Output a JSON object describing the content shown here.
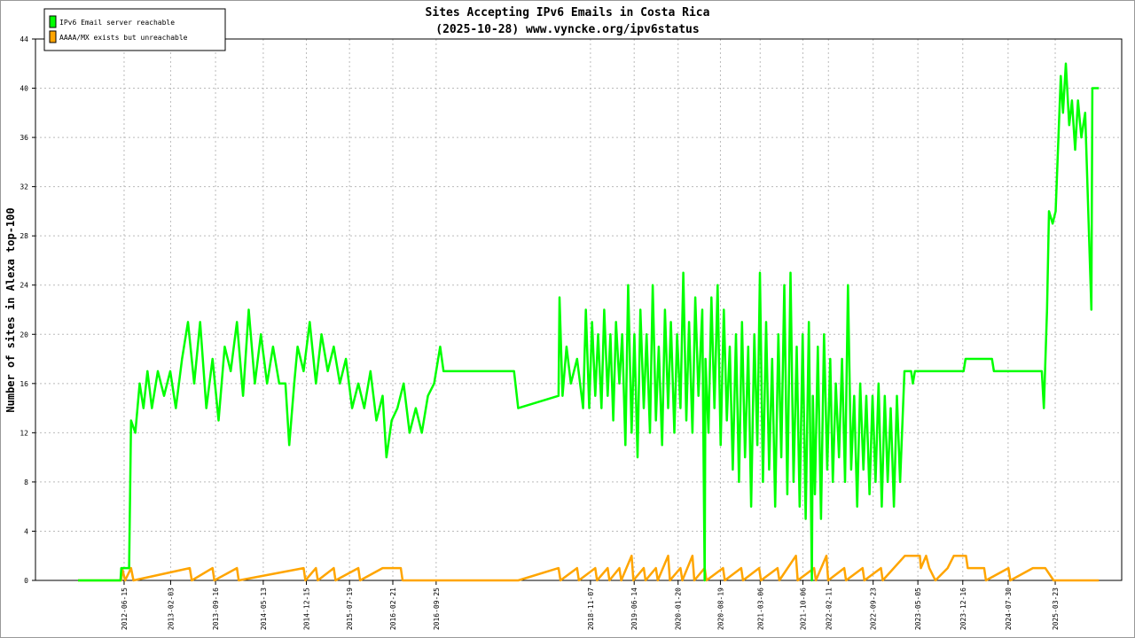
{
  "chart_data": {
    "type": "line",
    "title": "Sites Accepting IPv6 Emails in Costa Rica",
    "subtitle": "(2025-10-28) www.vyncke.org/ipv6status",
    "ylabel": "Number of sites in Alexa top-100",
    "xlim": [
      "2011-03-29",
      "2026-02-19"
    ],
    "xticks": [
      "2012-06-15",
      "2013-02-03",
      "2013-09-16",
      "2014-05-13",
      "2014-12-15",
      "2015-07-19",
      "2016-02-21",
      "2016-09-25",
      "2018-11-07",
      "2019-06-14",
      "2020-01-20",
      "2020-08-19",
      "2021-03-06",
      "2021-10-06",
      "2022-02-11",
      "2022-09-23",
      "2023-05-05",
      "2023-12-16",
      "2024-07-30",
      "2025-03-23"
    ],
    "ylim": [
      0,
      44
    ],
    "yticks": [
      0,
      4,
      8,
      12,
      16,
      20,
      24,
      28,
      32,
      36,
      40,
      44
    ],
    "grid": true,
    "legend": "upper left",
    "series": [
      {
        "name": "IPv6 Email server reachable",
        "color": "#00ff00",
        "x": [
          "2011-10-28",
          "2012-05-28",
          "2012-06-01",
          "2012-07-10",
          "2012-07-20",
          "2012-08-10",
          "2012-09-01",
          "2012-09-20",
          "2012-10-10",
          "2012-11-01",
          "2012-12-01",
          "2013-01-01",
          "2013-02-01",
          "2013-03-01",
          "2013-04-01",
          "2013-05-01",
          "2013-06-01",
          "2013-07-01",
          "2013-08-01",
          "2013-09-01",
          "2013-10-01",
          "2013-11-01",
          "2013-12-01",
          "2014-01-01",
          "2014-02-01",
          "2014-03-01",
          "2014-04-01",
          "2014-05-01",
          "2014-06-01",
          "2014-07-01",
          "2014-08-01",
          "2014-09-01",
          "2014-09-20",
          "2014-10-15",
          "2014-11-01",
          "2014-12-01",
          "2015-01-01",
          "2015-02-01",
          "2015-03-01",
          "2015-04-01",
          "2015-05-01",
          "2015-06-01",
          "2015-07-01",
          "2015-08-01",
          "2015-09-01",
          "2015-10-01",
          "2015-11-01",
          "2015-12-01",
          "2016-01-01",
          "2016-01-20",
          "2016-02-15",
          "2016-03-15",
          "2016-04-15",
          "2016-05-15",
          "2016-06-15",
          "2016-07-15",
          "2016-08-15",
          "2016-09-15",
          "2016-10-15",
          "2016-11-01",
          "2017-10-20",
          "2017-11-10",
          "2018-05-31",
          "2018-06-05",
          "2018-06-20",
          "2018-07-10",
          "2018-08-01",
          "2018-09-01",
          "2018-10-01",
          "2018-10-15",
          "2018-11-01",
          "2018-11-15",
          "2018-12-01",
          "2018-12-15",
          "2019-01-01",
          "2019-01-15",
          "2019-02-01",
          "2019-02-15",
          "2019-03-01",
          "2019-03-15",
          "2019-04-01",
          "2019-04-15",
          "2019-05-01",
          "2019-05-15",
          "2019-06-01",
          "2019-06-15",
          "2019-07-01",
          "2019-07-15",
          "2019-08-01",
          "2019-08-15",
          "2019-09-01",
          "2019-09-15",
          "2019-10-01",
          "2019-10-15",
          "2019-11-01",
          "2019-11-15",
          "2019-12-01",
          "2019-12-15",
          "2020-01-01",
          "2020-01-15",
          "2020-02-01",
          "2020-02-15",
          "2020-03-01",
          "2020-03-15",
          "2020-04-01",
          "2020-04-15",
          "2020-05-01",
          "2020-05-20",
          "2020-06-01",
          "2020-06-05",
          "2020-06-20",
          "2020-07-05",
          "2020-07-20",
          "2020-08-05",
          "2020-08-20",
          "2020-09-05",
          "2020-09-20",
          "2020-10-05",
          "2020-10-20",
          "2020-11-05",
          "2020-11-20",
          "2020-12-05",
          "2020-12-20",
          "2021-01-05",
          "2021-01-20",
          "2021-02-05",
          "2021-02-20",
          "2021-03-05",
          "2021-03-20",
          "2021-04-05",
          "2021-04-20",
          "2021-05-05",
          "2021-05-20",
          "2021-06-05",
          "2021-06-20",
          "2021-07-05",
          "2021-07-20",
          "2021-08-05",
          "2021-08-20",
          "2021-09-05",
          "2021-09-20",
          "2021-10-05",
          "2021-10-20",
          "2021-11-05",
          "2021-11-20",
          "2021-11-25",
          "2021-12-05",
          "2021-12-20",
          "2022-01-05",
          "2022-01-20",
          "2022-02-05",
          "2022-02-20",
          "2022-03-05",
          "2022-03-20",
          "2022-04-05",
          "2022-04-20",
          "2022-05-05",
          "2022-05-20",
          "2022-06-05",
          "2022-06-20",
          "2022-07-05",
          "2022-07-20",
          "2022-08-05",
          "2022-08-20",
          "2022-09-05",
          "2022-09-20",
          "2022-10-05",
          "2022-10-20",
          "2022-11-05",
          "2022-11-20",
          "2022-12-05",
          "2022-12-20",
          "2023-01-05",
          "2023-01-20",
          "2023-02-05",
          "2023-02-27",
          "2023-04-01",
          "2023-04-10",
          "2023-04-20",
          "2023-12-20",
          "2023-12-30",
          "2024-05-10",
          "2024-05-20",
          "2025-01-15",
          "2025-01-25",
          "2025-02-10",
          "2025-02-20",
          "2025-03-10",
          "2025-03-25",
          "2025-04-20",
          "2025-05-01",
          "2025-05-15",
          "2025-06-01",
          "2025-06-15",
          "2025-07-01",
          "2025-07-15",
          "2025-08-01",
          "2025-08-20",
          "2025-09-20",
          "2025-09-25",
          "2025-10-28"
        ],
        "values": [
          0,
          0,
          1,
          1,
          13,
          12,
          16,
          14,
          17,
          14,
          17,
          15,
          17,
          14,
          18,
          21,
          16,
          21,
          14,
          18,
          13,
          19,
          17,
          21,
          15,
          22,
          16,
          20,
          16,
          19,
          16,
          16,
          11,
          16,
          19,
          17,
          21,
          16,
          20,
          17,
          19,
          16,
          18,
          14,
          16,
          14,
          17,
          13,
          15,
          10,
          13,
          14,
          16,
          12,
          14,
          12,
          15,
          16,
          19,
          17,
          17,
          14,
          15,
          23,
          15,
          19,
          16,
          18,
          14,
          22,
          14,
          21,
          15,
          20,
          14,
          22,
          15,
          20,
          13,
          21,
          16,
          20,
          11,
          24,
          12,
          20,
          10,
          22,
          14,
          20,
          12,
          24,
          13,
          19,
          11,
          22,
          14,
          21,
          12,
          20,
          14,
          25,
          13,
          21,
          12,
          23,
          15,
          22,
          0,
          18,
          12,
          23,
          14,
          24,
          11,
          22,
          13,
          19,
          9,
          20,
          8,
          21,
          10,
          19,
          6,
          20,
          11,
          25,
          8,
          21,
          9,
          18,
          6,
          20,
          10,
          24,
          7,
          25,
          8,
          19,
          6,
          20,
          5,
          21,
          0,
          15,
          7,
          19,
          5,
          20,
          9,
          18,
          8,
          16,
          10,
          18,
          8,
          24,
          9,
          15,
          6,
          16,
          9,
          15,
          7,
          15,
          8,
          16,
          6,
          15,
          8,
          14,
          6,
          15,
          8,
          17,
          17,
          16,
          17,
          17,
          18,
          18,
          17,
          17,
          14,
          22,
          30,
          29,
          30,
          41,
          38,
          42,
          37,
          39,
          35,
          39,
          36,
          38,
          22,
          40,
          40
        ]
      },
      {
        "name": "AAAA/MX exists but unreachable",
        "color": "#ffa500",
        "x": [
          "2011-10-28",
          "2012-06-01",
          "2012-06-05",
          "2012-06-20",
          "2012-07-20",
          "2012-08-01",
          "2013-05-10",
          "2013-05-20",
          "2013-09-01",
          "2013-09-10",
          "2014-01-01",
          "2014-01-10",
          "2014-12-01",
          "2014-12-10",
          "2015-02-01",
          "2015-02-10",
          "2015-05-01",
          "2015-05-10",
          "2015-09-01",
          "2015-09-10",
          "2016-01-01",
          "2016-04-01",
          "2016-04-10",
          "2017-11-10",
          "2018-05-31",
          "2018-06-10",
          "2018-09-01",
          "2018-09-10",
          "2018-12-01",
          "2018-12-10",
          "2019-02-01",
          "2019-02-10",
          "2019-04-01",
          "2019-04-10",
          "2019-06-01",
          "2019-06-10",
          "2019-08-01",
          "2019-08-10",
          "2019-10-01",
          "2019-10-10",
          "2019-12-01",
          "2019-12-10",
          "2020-02-01",
          "2020-02-10",
          "2020-04-01",
          "2020-04-10",
          "2020-06-01",
          "2020-06-10",
          "2020-09-01",
          "2020-09-10",
          "2020-12-01",
          "2020-12-10",
          "2021-03-01",
          "2021-03-10",
          "2021-06-01",
          "2021-06-10",
          "2021-09-01",
          "2021-09-10",
          "2021-12-01",
          "2021-12-10",
          "2022-02-01",
          "2022-02-10",
          "2022-05-01",
          "2022-05-10",
          "2022-08-01",
          "2022-08-10",
          "2022-11-01",
          "2022-11-10",
          "2023-03-01",
          "2023-05-15",
          "2023-05-20",
          "2023-06-15",
          "2023-07-01",
          "2023-08-01",
          "2023-10-01",
          "2023-11-01",
          "2024-01-01",
          "2024-01-10",
          "2024-04-01",
          "2024-04-10",
          "2024-08-01",
          "2024-08-10",
          "2024-12-01",
          "2025-02-01",
          "2025-03-15",
          "2025-10-28"
        ],
        "values": [
          0,
          0,
          1,
          0,
          1,
          0,
          1,
          0,
          1,
          0,
          1,
          0,
          1,
          0,
          1,
          0,
          1,
          0,
          1,
          0,
          1,
          1,
          0,
          0,
          1,
          0,
          1,
          0,
          1,
          0,
          1,
          0,
          1,
          0,
          2,
          0,
          1,
          0,
          1,
          0,
          2,
          0,
          1,
          0,
          2,
          0,
          1,
          0,
          1,
          0,
          1,
          0,
          1,
          0,
          1,
          0,
          2,
          0,
          1,
          0,
          2,
          0,
          1,
          0,
          1,
          0,
          1,
          0,
          2,
          2,
          1,
          2,
          1,
          0,
          1,
          2,
          2,
          1,
          1,
          0,
          1,
          0,
          1,
          1,
          0,
          0
        ]
      }
    ]
  }
}
